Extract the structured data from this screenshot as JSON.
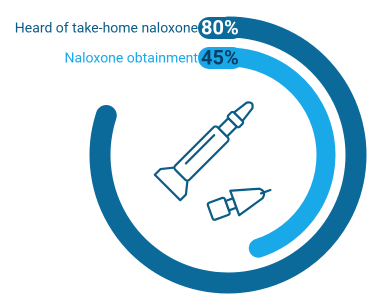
{
  "chart_data": {
    "type": "radial-bar",
    "series": [
      {
        "name": "Heard of take-home naloxone",
        "color": "#0b6a9a",
        "values": [
          80
        ],
        "value_labels": [
          "80%"
        ]
      },
      {
        "name": "Naloxone obtainment",
        "color": "#1aa9e8",
        "values": [
          45
        ],
        "value_labels": [
          "45%"
        ]
      }
    ],
    "ylim": [
      0,
      100
    ]
  }
}
